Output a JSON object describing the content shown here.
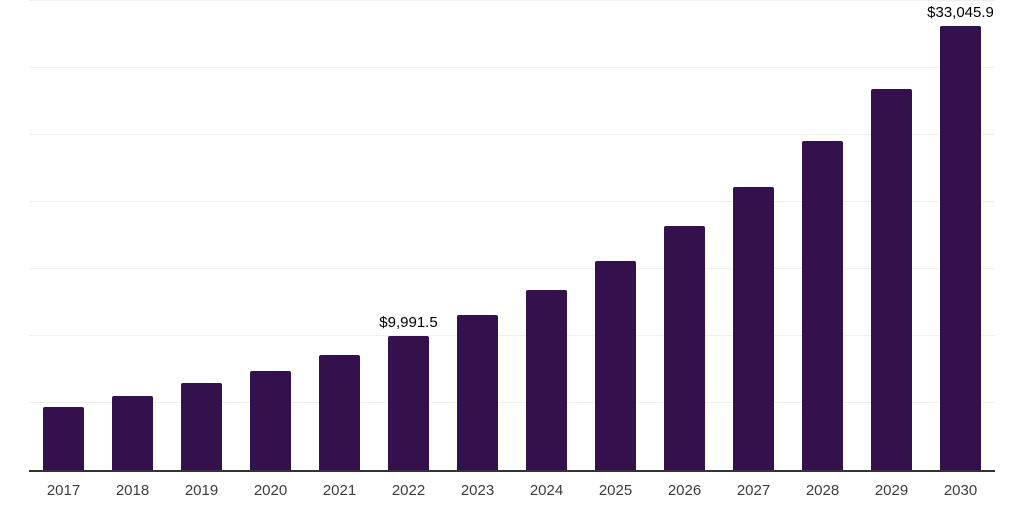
{
  "chart_data": {
    "type": "bar",
    "title": "",
    "xlabel": "",
    "ylabel": "",
    "categories": [
      "2017",
      "2018",
      "2019",
      "2020",
      "2021",
      "2022",
      "2023",
      "2024",
      "2025",
      "2026",
      "2027",
      "2028",
      "2029",
      "2030"
    ],
    "values": [
      4720,
      5510,
      6460,
      7380,
      8570,
      9991.5,
      11550,
      13430,
      15590,
      18150,
      21060,
      24480,
      28410,
      33045.9
    ],
    "value_labels": {
      "2022": "$9,991.5",
      "2030": "$33,045.9"
    },
    "ylim": [
      0,
      35000
    ],
    "grid": true,
    "grid_interval": 5000,
    "legend": false,
    "colors": {
      "bar": "#34104D",
      "axis_line": "#333333",
      "gridline": "#efefef",
      "tick_label": "#3d3d3d",
      "value_label": "#000000"
    }
  }
}
